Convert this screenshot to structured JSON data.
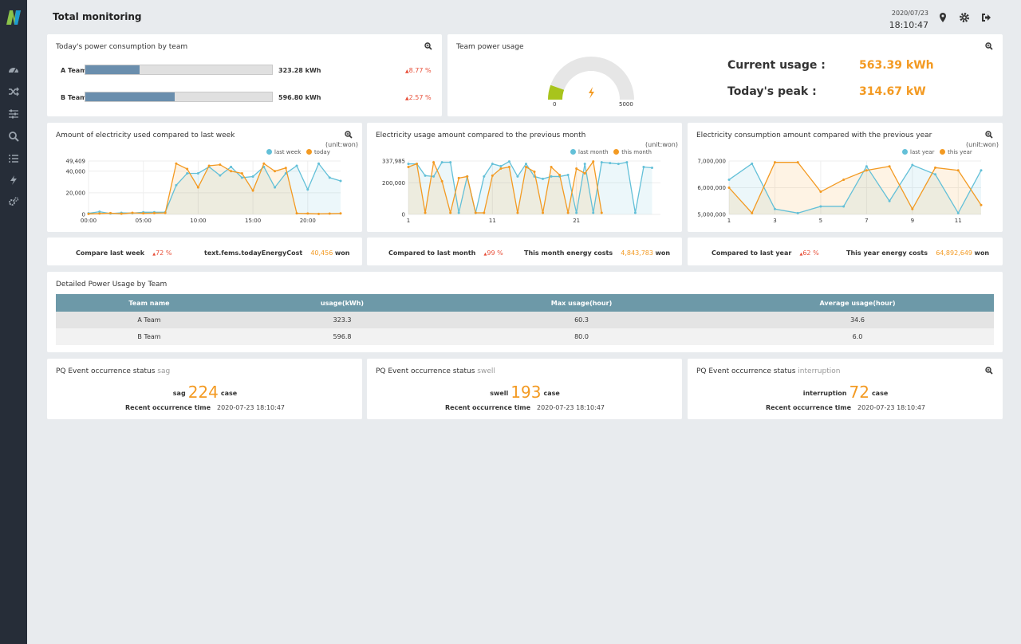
{
  "header": {
    "title": "Total monitoring",
    "date": "2020/07/23",
    "time": "18:10:47"
  },
  "sidebar": {
    "items": [
      "dashboard-icon",
      "shuffle-icon",
      "sliders-icon",
      "search-icon",
      "list-icon",
      "bolt-icon",
      "gears-icon"
    ]
  },
  "colors": {
    "accent": "#f39a22",
    "blue_series": "#63c0d8",
    "orange_series": "#f39a22",
    "bar": "#6a8ead",
    "gauge": "#a8c41c",
    "table_header": "#6d99a8",
    "up": "#e8503a"
  },
  "team_consumption": {
    "title": "Today's power consumption by team",
    "rows": [
      {
        "label": "A Team",
        "value": "323.28 kWh",
        "fill": 0.29,
        "change": "8.77 %"
      },
      {
        "label": "B Team",
        "value": "596.80 kWh",
        "fill": 0.48,
        "change": "2.57 %"
      }
    ]
  },
  "team_usage": {
    "title": "Team power usage",
    "gauge_min": "0",
    "gauge_max": "5000",
    "gauge_level": 0.11,
    "current_label": "Current usage :",
    "current_value": "563.39 kWh",
    "peak_label": "Today's peak :",
    "peak_value": "314.67 kW"
  },
  "chart_data": [
    {
      "type": "line",
      "title": "Amount of electricity used compared to last week",
      "unit": "(unit:won)",
      "y_max_label": "49,409",
      "yticks": [
        "49,409",
        "40,000",
        "20,000",
        "0"
      ],
      "ytick_values": [
        49409,
        40000,
        20000,
        0
      ],
      "ylim": [
        0,
        49409
      ],
      "xticks": [
        "00:00",
        "05:00",
        "10:00",
        "15:00",
        "20:00"
      ],
      "xtick_positions": [
        0,
        5,
        10,
        15,
        20
      ],
      "xlim": [
        0,
        23
      ],
      "series": [
        {
          "name": "last week",
          "x": [
            0,
            1,
            2,
            3,
            4,
            5,
            6,
            7,
            8,
            9,
            10,
            11,
            12,
            13,
            14,
            15,
            16,
            17,
            18,
            19,
            20,
            21,
            22,
            23
          ],
          "values": [
            1000,
            2500,
            800,
            1500,
            1200,
            2000,
            2000,
            2000,
            27000,
            38000,
            38000,
            44000,
            36000,
            44000,
            34000,
            35000,
            44000,
            25000,
            38000,
            45000,
            23000,
            47000,
            34000,
            31000
          ]
        },
        {
          "name": "today",
          "x": [
            0,
            1,
            2,
            3,
            4,
            5,
            6,
            7,
            8,
            9,
            10,
            11,
            12,
            13,
            14,
            15,
            16,
            17,
            18,
            19,
            20,
            21,
            22,
            23
          ],
          "values": [
            500,
            800,
            1200,
            600,
            1500,
            1000,
            1200,
            1400,
            47000,
            42000,
            25000,
            45000,
            46000,
            40000,
            38000,
            22000,
            47000,
            40000,
            43000,
            1000,
            800,
            500,
            700,
            900
          ]
        }
      ]
    },
    {
      "type": "line",
      "title": "Electricity usage amount compared to the previous month",
      "unit": "(unit:won)",
      "yticks": [
        "337,985",
        "200,000",
        "0"
      ],
      "ytick_values": [
        337985,
        200000,
        0
      ],
      "ylim": [
        0,
        337985
      ],
      "xticks": [
        "1",
        "11",
        "21"
      ],
      "xtick_positions": [
        1,
        11,
        21
      ],
      "xlim": [
        1,
        31
      ],
      "series": [
        {
          "name": "last month",
          "x": [
            1,
            2,
            3,
            4,
            5,
            6,
            7,
            8,
            9,
            10,
            11,
            12,
            13,
            14,
            15,
            16,
            17,
            18,
            19,
            20,
            21,
            22,
            23,
            24,
            25,
            26,
            27,
            28,
            29,
            30
          ],
          "values": [
            320000,
            320000,
            245000,
            240000,
            330000,
            330000,
            10000,
            240000,
            10000,
            240000,
            320000,
            305000,
            335000,
            240000,
            320000,
            240000,
            225000,
            240000,
            240000,
            250000,
            10000,
            320000,
            10000,
            330000,
            325000,
            320000,
            330000,
            10000,
            300000,
            295000
          ]
        },
        {
          "name": "this month",
          "x": [
            1,
            2,
            3,
            4,
            5,
            6,
            7,
            8,
            9,
            10,
            11,
            12,
            13,
            14,
            15,
            16,
            17,
            18,
            19,
            20,
            21,
            22,
            23,
            24
          ],
          "values": [
            300000,
            320000,
            10000,
            330000,
            210000,
            10000,
            230000,
            240000,
            10000,
            10000,
            245000,
            290000,
            300000,
            10000,
            300000,
            270000,
            10000,
            300000,
            250000,
            10000,
            290000,
            260000,
            335000,
            10000
          ]
        }
      ]
    },
    {
      "type": "line",
      "title": "Electricity consumption amount compared with the previous year",
      "unit": "(unit:won)",
      "yticks": [
        "7,000,000",
        "6,000,000",
        "5,000,000"
      ],
      "ytick_values": [
        7000000,
        6000000,
        5000000
      ],
      "ylim": [
        5000000,
        7000000
      ],
      "xticks": [
        "1",
        "3",
        "5",
        "7",
        "9",
        "11"
      ],
      "xtick_positions": [
        1,
        3,
        5,
        7,
        9,
        11
      ],
      "xlim": [
        1,
        12
      ],
      "series": [
        {
          "name": "last year",
          "x": [
            1,
            2,
            3,
            4,
            5,
            6,
            7,
            8,
            9,
            10,
            11,
            12
          ],
          "values": [
            6300000,
            6900000,
            5200000,
            5050000,
            5300000,
            5300000,
            6800000,
            5500000,
            6850000,
            6500000,
            5050000,
            6650000
          ]
        },
        {
          "name": "this year",
          "x": [
            1,
            2,
            3,
            4,
            5,
            6,
            7,
            8,
            9,
            10,
            11,
            12
          ],
          "values": [
            6000000,
            5050000,
            6950000,
            6950000,
            5850000,
            6300000,
            6650000,
            6800000,
            5200000,
            6750000,
            6650000,
            5350000
          ]
        }
      ]
    }
  ],
  "summaries": [
    {
      "label1": "Compare last week",
      "pct": "72 %",
      "label2": "text.fems.todayEnergyCost",
      "value": "40,456",
      "unit": "won"
    },
    {
      "label1": "Compared to last month",
      "pct": "99 %",
      "label2": "This month energy costs",
      "value": "4,843,783",
      "unit": "won"
    },
    {
      "label1": "Compared to last year",
      "pct": "62 %",
      "label2": "This year energy costs",
      "value": "64,892,649",
      "unit": "won"
    }
  ],
  "detail_table": {
    "title": "Detailed Power Usage by Team",
    "headers": [
      "Team name",
      "usage(kWh)",
      "Max usage(hour)",
      "Average usage(hour)"
    ],
    "rows": [
      [
        "A Team",
        "323.3",
        "60.3",
        "34.6"
      ],
      [
        "B Team",
        "596.8",
        "80.0",
        "6.0"
      ]
    ]
  },
  "pq_events": [
    {
      "title": "PQ Event occurrence status",
      "type": "sag",
      "label": "sag",
      "count": "224",
      "case": "case",
      "time_label": "Recent occurrence time",
      "time": "2020-07-23 18:10:47"
    },
    {
      "title": "PQ Event occurrence status",
      "type": "swell",
      "label": "swell",
      "count": "193",
      "case": "case",
      "time_label": "Recent occurrence time",
      "time": "2020-07-23 18:10:47"
    },
    {
      "title": "PQ Event occurrence status",
      "type": "interruption",
      "label": "interruption",
      "count": "72",
      "case": "case",
      "time_label": "Recent occurrence time",
      "time": "2020-07-23 18:10:47"
    }
  ]
}
